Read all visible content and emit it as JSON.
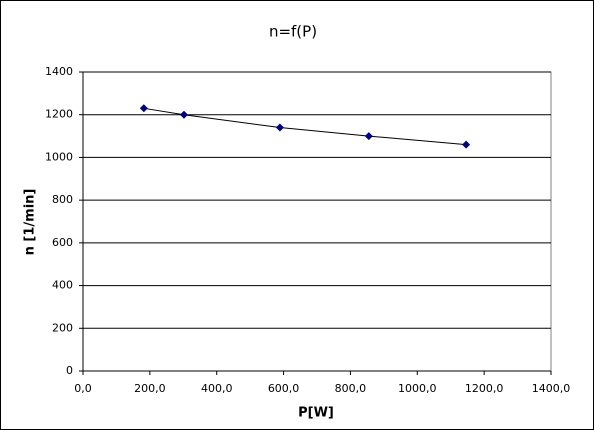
{
  "chart_data": {
    "type": "scatter",
    "title": "n=f(P)",
    "x_label": "P[W]",
    "y_label": "n [1/min]",
    "series": [
      {
        "color": "#000080",
        "line_color": "#000000",
        "x": [
          182,
          302,
          589,
          855,
          1146
        ],
        "values": [
          1230,
          1200,
          1140,
          1100,
          1060
        ]
      }
    ],
    "xlim": [
      0,
      1400
    ],
    "xticks": [
      {
        "value": 0,
        "label": "0,0"
      },
      {
        "value": 200,
        "label": "200,0"
      },
      {
        "value": 400,
        "label": "400,0"
      },
      {
        "value": 600,
        "label": "600,0"
      },
      {
        "value": 800,
        "label": "800,0"
      },
      {
        "value": 1000,
        "label": "1000,0"
      },
      {
        "value": 1200,
        "label": "1200,0"
      },
      {
        "value": 1400,
        "label": "1400,0"
      }
    ],
    "ylim": [
      0,
      1400
    ],
    "yticks": [
      0,
      200,
      400,
      600,
      800,
      1000,
      1200,
      1400
    ],
    "grid": true
  }
}
